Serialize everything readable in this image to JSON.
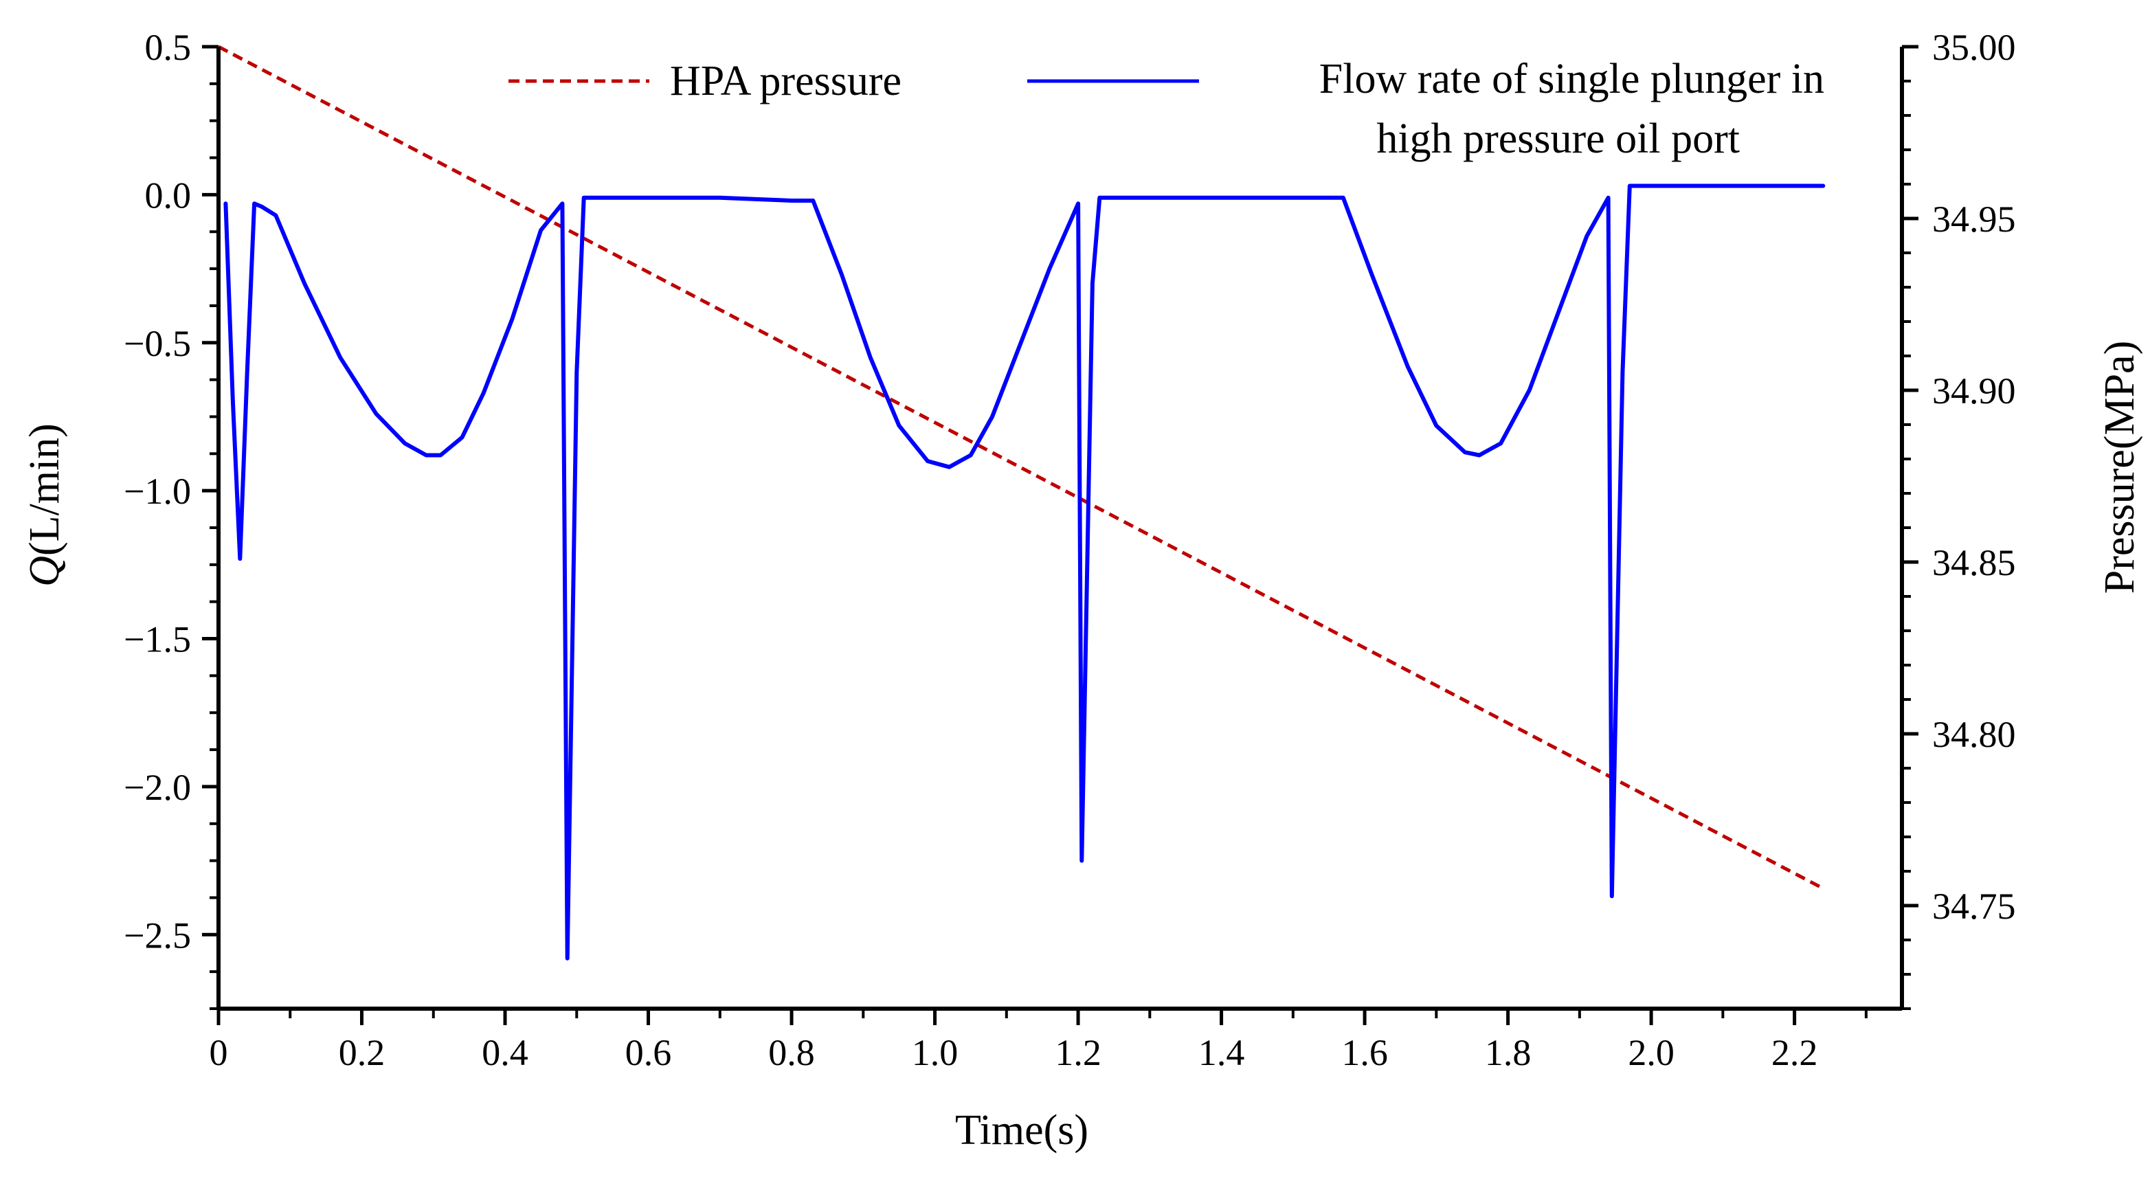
{
  "chart_data": {
    "type": "line",
    "title": "",
    "xlabel": "Time(s)",
    "ylabel_left_italic": "Q",
    "ylabel_left_unit": "(L/min)",
    "ylabel_right": "Pressure(MPa)",
    "xlim": [
      0,
      2.35
    ],
    "ylim_left": [
      -2.75,
      0.5
    ],
    "ylim_right": [
      34.72,
      35.0
    ],
    "x_ticks": [
      {
        "value": 0,
        "label": "0"
      },
      {
        "value": 0.2,
        "label": "0.2"
      },
      {
        "value": 0.4,
        "label": "0.4"
      },
      {
        "value": 0.6,
        "label": "0.6"
      },
      {
        "value": 0.8,
        "label": "0.8"
      },
      {
        "value": 1.0,
        "label": "1.0"
      },
      {
        "value": 1.2,
        "label": "1.2"
      },
      {
        "value": 1.4,
        "label": "1.4"
      },
      {
        "value": 1.6,
        "label": "1.6"
      },
      {
        "value": 1.8,
        "label": "1.8"
      },
      {
        "value": 2.0,
        "label": "2.0"
      },
      {
        "value": 2.2,
        "label": "2.2"
      }
    ],
    "y_left_ticks": [
      {
        "value": 0.5,
        "label": "0.5"
      },
      {
        "value": 0.0,
        "label": "0.0"
      },
      {
        "value": -0.5,
        "label": "−0.5"
      },
      {
        "value": -1.0,
        "label": "−1.0"
      },
      {
        "value": -1.5,
        "label": "−1.5"
      },
      {
        "value": -2.0,
        "label": "−2.0"
      },
      {
        "value": -2.5,
        "label": "−2.5"
      }
    ],
    "y_right_ticks": [
      {
        "value": 35.0,
        "label": "35.00"
      },
      {
        "value": 34.95,
        "label": "34.95"
      },
      {
        "value": 34.9,
        "label": "34.90"
      },
      {
        "value": 34.85,
        "label": "34.85"
      },
      {
        "value": 34.8,
        "label": "34.80"
      },
      {
        "value": 34.75,
        "label": "34.75"
      }
    ],
    "legend": {
      "placement": "top",
      "entries": [
        {
          "label": "HPA pressure",
          "series": "pressure"
        },
        {
          "label_line1": "Flow rate of single plunger in",
          "label_line2": "high pressure oil port",
          "series": "flow"
        }
      ]
    },
    "series": [
      {
        "name": "HPA pressure",
        "key": "pressure",
        "axis": "right",
        "style": "dashed",
        "color": "#c00000",
        "x": [
          0.0,
          2.24
        ],
        "y": [
          35.0,
          34.755
        ]
      },
      {
        "name": "Flow rate of single plunger in high pressure oil port",
        "key": "flow",
        "axis": "left",
        "style": "solid",
        "color": "#0000ff",
        "x": [
          0.01,
          0.02,
          0.03,
          0.04,
          0.05,
          0.06,
          0.08,
          0.12,
          0.17,
          0.22,
          0.26,
          0.29,
          0.31,
          0.34,
          0.37,
          0.41,
          0.45,
          0.48,
          0.487,
          0.5,
          0.51,
          0.6,
          0.7,
          0.8,
          0.83,
          0.87,
          0.91,
          0.95,
          0.99,
          1.02,
          1.05,
          1.08,
          1.12,
          1.16,
          1.2,
          1.205,
          1.22,
          1.23,
          1.3,
          1.4,
          1.5,
          1.57,
          1.61,
          1.66,
          1.7,
          1.74,
          1.76,
          1.79,
          1.83,
          1.87,
          1.91,
          1.94,
          1.945,
          1.96,
          1.97,
          2.0,
          2.1,
          2.2,
          2.24
        ],
        "y": [
          -0.03,
          -0.7,
          -1.23,
          -0.6,
          -0.03,
          -0.04,
          -0.07,
          -0.3,
          -0.55,
          -0.74,
          -0.84,
          -0.88,
          -0.88,
          -0.82,
          -0.67,
          -0.42,
          -0.12,
          -0.03,
          -2.58,
          -0.6,
          -0.01,
          -0.01,
          -0.01,
          -0.02,
          -0.02,
          -0.27,
          -0.55,
          -0.78,
          -0.9,
          -0.92,
          -0.88,
          -0.75,
          -0.5,
          -0.25,
          -0.03,
          -2.25,
          -0.3,
          -0.01,
          -0.01,
          -0.01,
          -0.01,
          -0.01,
          -0.27,
          -0.58,
          -0.78,
          -0.87,
          -0.88,
          -0.84,
          -0.66,
          -0.4,
          -0.14,
          -0.01,
          -2.37,
          -0.6,
          0.03,
          0.03,
          0.03,
          0.03,
          0.03
        ]
      }
    ]
  }
}
